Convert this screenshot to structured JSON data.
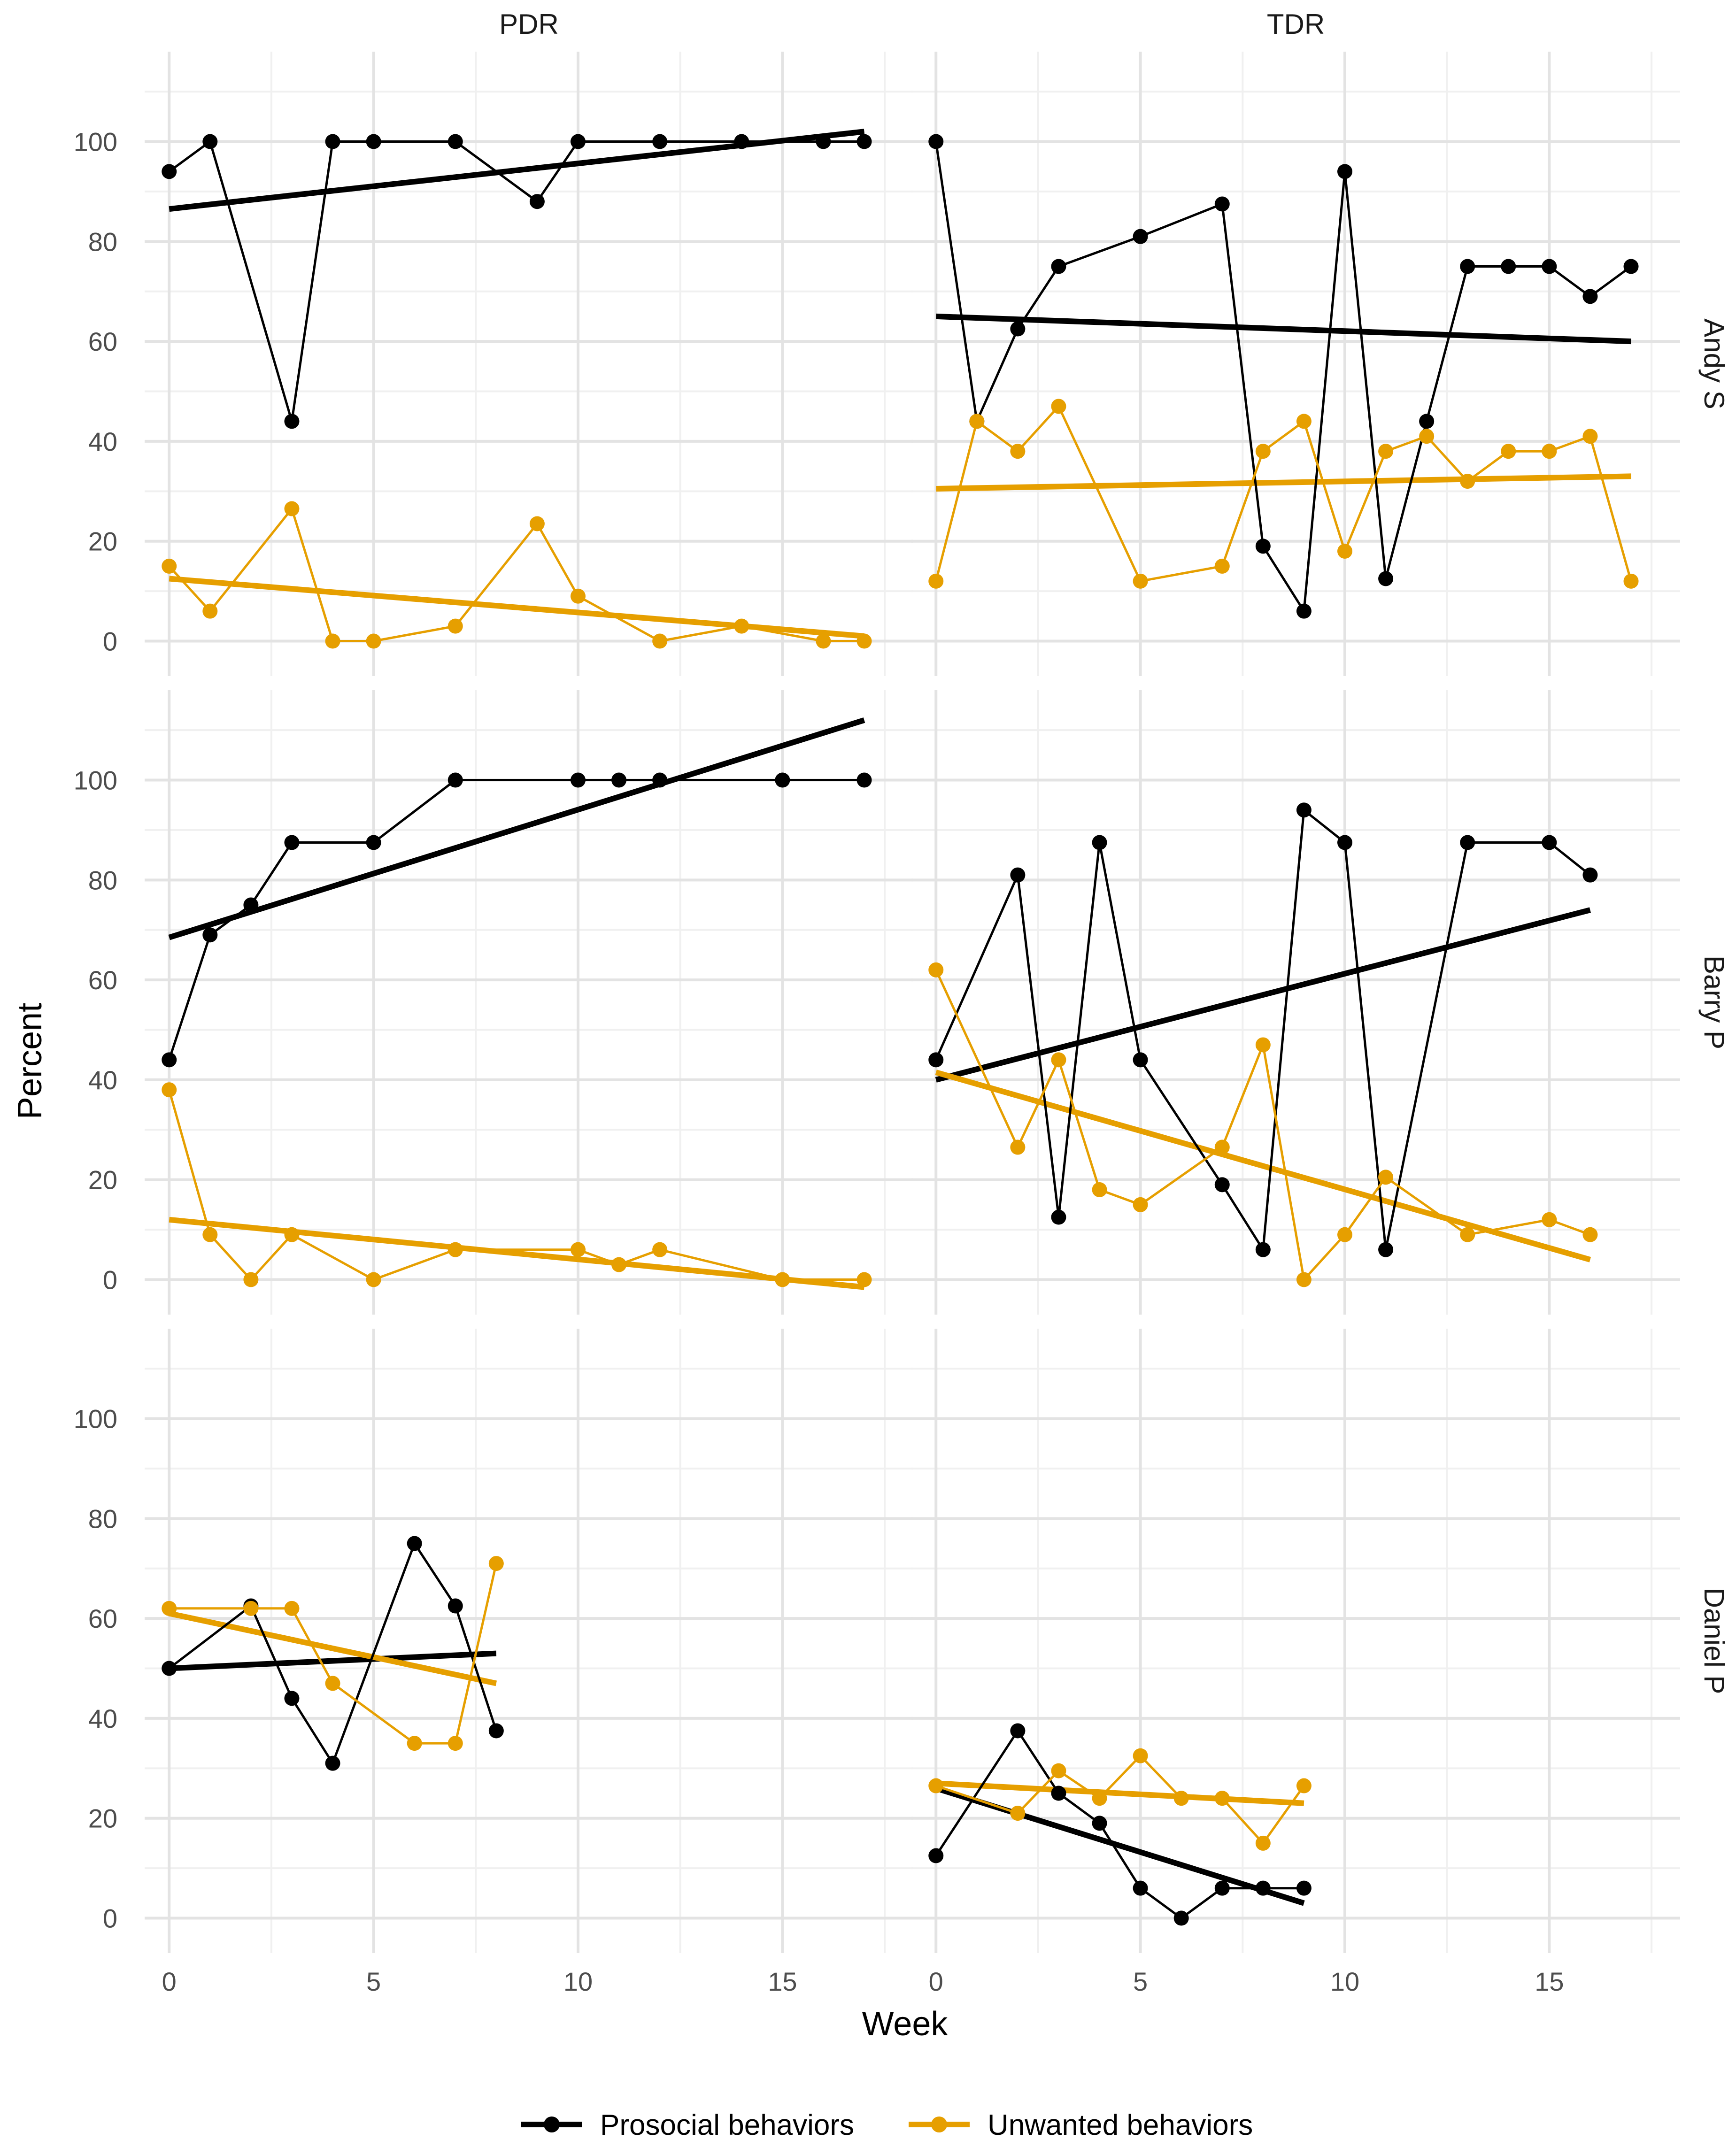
{
  "chart_data": {
    "type": "line",
    "xlabel": "Week",
    "ylabel": "Percent",
    "x_ticks": [
      0,
      5,
      10,
      15
    ],
    "y_ticks": [
      0,
      20,
      40,
      60,
      80,
      100
    ],
    "xlim": [
      -0.6,
      18.2
    ],
    "ylim": [
      -7,
      118
    ],
    "grid": true,
    "legend_position": "bottom",
    "column_labels": [
      "PDR",
      "TDR"
    ],
    "row_labels": [
      "Andy S",
      "Barry P",
      "Daniel P"
    ],
    "series_styles": [
      {
        "name": "Prosocial behaviors",
        "color": "#000000"
      },
      {
        "name": "Unwanted behaviors",
        "color": "#E69F00"
      }
    ],
    "panels": [
      {
        "row": "Andy S",
        "column": "PDR",
        "series": [
          {
            "name": "Prosocial behaviors",
            "x": [
              0,
              1,
              3,
              4,
              5,
              7,
              9,
              10,
              12,
              14,
              16,
              17
            ],
            "y": [
              94,
              100,
              44,
              100,
              100,
              100,
              88,
              100,
              100,
              100,
              100,
              100
            ],
            "trend": [
              [
                0,
                86.5
              ],
              [
                17,
                102
              ]
            ]
          },
          {
            "name": "Unwanted behaviors",
            "x": [
              0,
              1,
              3,
              4,
              5,
              7,
              9,
              10,
              12,
              14,
              16,
              17
            ],
            "y": [
              15,
              6,
              26.5,
              0,
              0,
              3,
              23.5,
              9,
              0,
              3,
              0,
              0
            ],
            "trend": [
              [
                0,
                12.5
              ],
              [
                17,
                1
              ]
            ]
          }
        ]
      },
      {
        "row": "Andy S",
        "column": "TDR",
        "series": [
          {
            "name": "Prosocial behaviors",
            "x": [
              0,
              1,
              2,
              3,
              5,
              7,
              8,
              9,
              10,
              11,
              12,
              13,
              14,
              15,
              16,
              17
            ],
            "y": [
              100,
              44,
              62.5,
              75,
              81,
              87.5,
              19,
              6,
              94,
              12.5,
              44,
              75,
              75,
              75,
              69,
              75
            ],
            "trend": [
              [
                0,
                65
              ],
              [
                17,
                60
              ]
            ]
          },
          {
            "name": "Unwanted behaviors",
            "x": [
              0,
              1,
              2,
              3,
              5,
              7,
              8,
              9,
              10,
              11,
              12,
              13,
              14,
              15,
              16,
              17
            ],
            "y": [
              12,
              44,
              38,
              47,
              12,
              15,
              38,
              44,
              18,
              38,
              41,
              32,
              38,
              38,
              41,
              12
            ],
            "trend": [
              [
                0,
                30.5
              ],
              [
                17,
                33
              ]
            ]
          }
        ]
      },
      {
        "row": "Barry P",
        "column": "PDR",
        "series": [
          {
            "name": "Prosocial behaviors",
            "x": [
              0,
              1,
              2,
              3,
              5,
              7,
              10,
              11,
              12,
              15,
              17
            ],
            "y": [
              44,
              69,
              75,
              87.5,
              87.5,
              100,
              100,
              100,
              100,
              100,
              100
            ],
            "trend": [
              [
                0,
                68.5
              ],
              [
                17,
                112
              ]
            ]
          },
          {
            "name": "Unwanted behaviors",
            "x": [
              0,
              1,
              2,
              3,
              5,
              7,
              10,
              11,
              12,
              15,
              17
            ],
            "y": [
              38,
              9,
              0,
              9,
              0,
              6,
              6,
              3,
              6,
              0,
              0
            ],
            "trend": [
              [
                0,
                12
              ],
              [
                17,
                -1.5
              ]
            ]
          }
        ]
      },
      {
        "row": "Barry P",
        "column": "TDR",
        "series": [
          {
            "name": "Prosocial behaviors",
            "x": [
              0,
              2,
              3,
              4,
              5,
              7,
              8,
              9,
              10,
              11,
              13,
              15,
              16
            ],
            "y": [
              44,
              81,
              12.5,
              87.5,
              44,
              19,
              6,
              94,
              87.5,
              6,
              87.5,
              87.5,
              81
            ],
            "trend": [
              [
                0,
                40
              ],
              [
                16,
                74
              ]
            ]
          },
          {
            "name": "Unwanted behaviors",
            "x": [
              0,
              2,
              3,
              4,
              5,
              7,
              8,
              9,
              10,
              11,
              13,
              15,
              16
            ],
            "y": [
              62,
              26.5,
              44,
              18,
              15,
              26.5,
              47,
              0,
              9,
              20.5,
              9,
              12,
              9
            ],
            "trend": [
              [
                0,
                41.5
              ],
              [
                16,
                4
              ]
            ]
          }
        ]
      },
      {
        "row": "Daniel P",
        "column": "PDR",
        "series": [
          {
            "name": "Prosocial behaviors",
            "x": [
              0,
              2,
              3,
              4,
              6,
              7,
              8
            ],
            "y": [
              50,
              62.5,
              44,
              31,
              75,
              62.5,
              37.5
            ],
            "trend": [
              [
                0,
                50
              ],
              [
                8,
                53
              ]
            ]
          },
          {
            "name": "Unwanted behaviors",
            "x": [
              0,
              2,
              3,
              4,
              6,
              7,
              8
            ],
            "y": [
              62,
              62,
              62,
              47,
              35,
              35,
              71
            ],
            "trend": [
              [
                0,
                61
              ],
              [
                8,
                47
              ]
            ]
          }
        ]
      },
      {
        "row": "Daniel P",
        "column": "TDR",
        "series": [
          {
            "name": "Prosocial behaviors",
            "x": [
              0,
              2,
              3,
              4,
              5,
              6,
              7,
              8,
              9
            ],
            "y": [
              12.5,
              37.5,
              25,
              19,
              6,
              0,
              6,
              6,
              6
            ],
            "trend": [
              [
                0,
                26
              ],
              [
                9,
                3
              ]
            ]
          },
          {
            "name": "Unwanted behaviors",
            "x": [
              0,
              2,
              3,
              4,
              5,
              6,
              7,
              8,
              9
            ],
            "y": [
              26.5,
              21,
              29.5,
              24,
              32.5,
              24,
              24,
              15,
              26.5
            ],
            "trend": [
              [
                0,
                27
              ],
              [
                9,
                23
              ]
            ]
          }
        ]
      }
    ]
  }
}
